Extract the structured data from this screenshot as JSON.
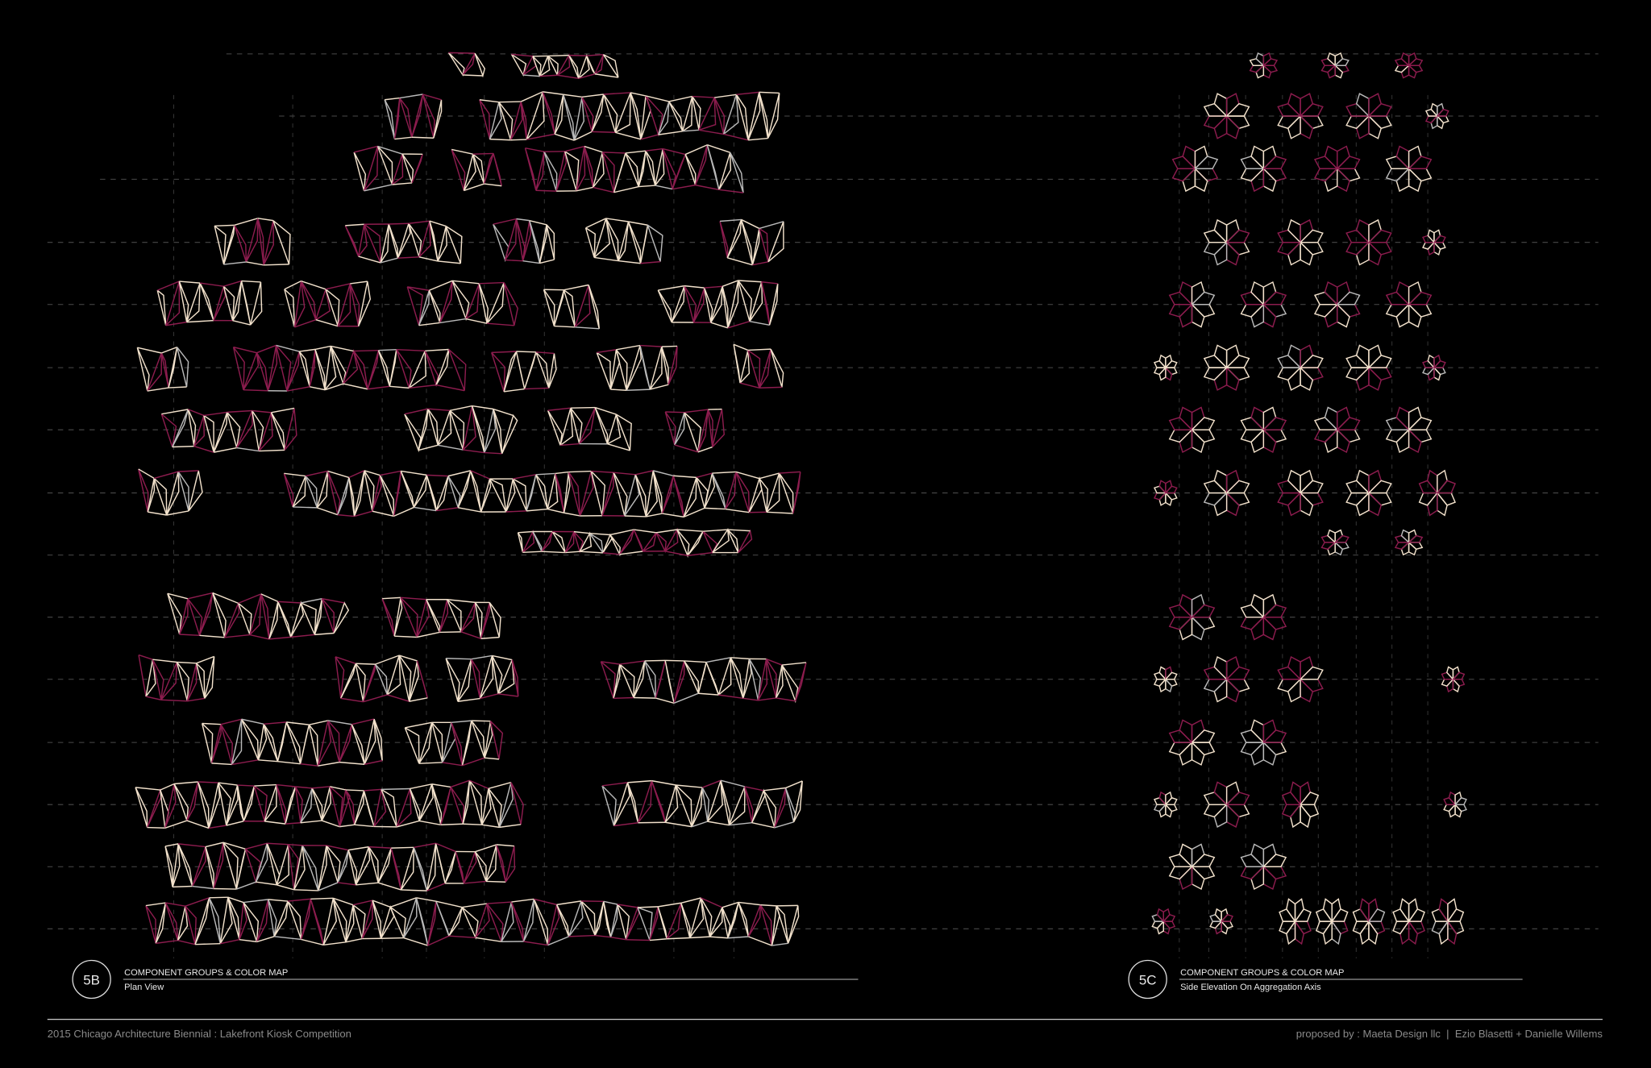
{
  "panels": [
    {
      "tag": "5B",
      "title": "COMPONENT GROUPS & COLOR MAP",
      "subtitle": "Plan View"
    },
    {
      "tag": "5C",
      "title": "COMPONENT GROUPS & COLOR MAP",
      "subtitle": "Side Elevation On Aggregation Axis"
    }
  ],
  "footer": {
    "left": "2015 Chicago Architecture Biennial : Lakefront Kiosk Competition",
    "right": "proposed by : Maeta Design llc  |  Ezio Blasetti + Danielle Willems"
  }
}
